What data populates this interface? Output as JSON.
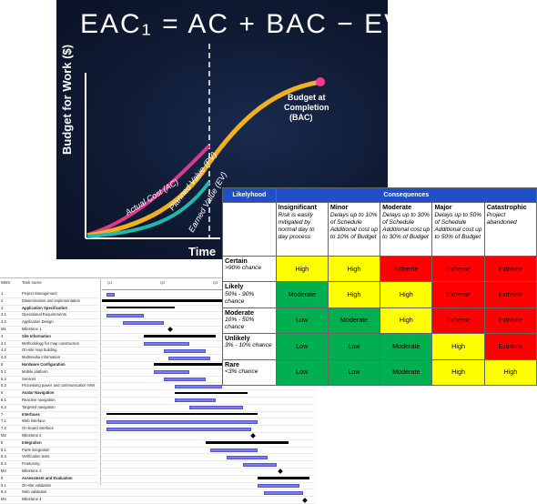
{
  "slide": {
    "equation": "EAC₁ = AC + BAC − EV",
    "y_axis_label": "Budget for Work ($)",
    "x_axis_label": "Time",
    "curves": {
      "ac": "Actual Cost (AC)",
      "pv": "Planned Value (PV)",
      "ev": "Earned Value (EV)"
    },
    "bac_label_line1": "Budget at",
    "bac_label_line2": "Completion",
    "bac_label_line3": "(BAC)",
    "colors": {
      "ac": "#d93a8e",
      "pv": "#f0b020",
      "ev": "#22b8b0",
      "bac_dot": "#ff3a8c"
    }
  },
  "matrix": {
    "likelihood_header": "Likelyhood",
    "consequences_header": "Consequences",
    "columns": [
      {
        "title": "Insignificant",
        "desc": "Risk is easily mitigated by normal day to day process"
      },
      {
        "title": "Minor",
        "desc": "Delays up to 10% of Schedule Additional cost up to 10% of Budget"
      },
      {
        "title": "Moderate",
        "desc": "Delays up to 30% of Schedule Additional cost up to 30% of Budget"
      },
      {
        "title": "Major",
        "desc": "Delays up to 50% of Schedule Additional cost up to 50% of Budget"
      },
      {
        "title": "Catastrophic",
        "desc": "Project abandoned"
      }
    ],
    "rows": [
      {
        "title": "Certain",
        "desc": ">90% chance",
        "values": [
          "High",
          "High",
          "Extreme",
          "Extreme",
          "Extreme"
        ]
      },
      {
        "title": "Likely",
        "desc": "50% - 90% chance",
        "values": [
          "Moderate",
          "High",
          "High",
          "Extreme",
          "Extreme"
        ]
      },
      {
        "title": "Moderate",
        "desc": "10% - 50% chance",
        "values": [
          "Low",
          "Moderate",
          "High",
          "Extreme",
          "Extreme"
        ]
      },
      {
        "title": "Unlikely",
        "desc": "3% - 10% chance",
        "values": [
          "Low",
          "Low",
          "Moderate",
          "High",
          "Extreme"
        ]
      },
      {
        "title": "Rare",
        "desc": "<3% chance",
        "values": [
          "Low",
          "Low",
          "Moderate",
          "High",
          "High"
        ]
      }
    ],
    "colors": {
      "header": "#1f4fc9",
      "High": "#ffff00",
      "Extreme": "#ff0000",
      "Moderate": "#00b050",
      "Low": "#00b050"
    }
  },
  "gantt": {
    "col_id": "WBS",
    "col_name": "Task name",
    "quarters": [
      "Q1",
      "Q2",
      "Q3",
      "Q4"
    ],
    "tasks": [
      {
        "id": "1",
        "name": "Project Management",
        "type": "bar",
        "bold": false,
        "start": 0.02,
        "end": 0.06
      },
      {
        "id": "2",
        "name": "Dissemination and implementation",
        "type": "summary",
        "bold": false,
        "start": 0.0,
        "end": 1.0
      },
      {
        "id": "3",
        "name": "Application Specification",
        "type": "summary",
        "bold": true,
        "start": 0.02,
        "end": 0.35
      },
      {
        "id": "3.1",
        "name": "Operational Requirements",
        "type": "bar",
        "bold": false,
        "start": 0.02,
        "end": 0.2
      },
      {
        "id": "3.2",
        "name": "Application Design",
        "type": "bar",
        "bold": false,
        "start": 0.1,
        "end": 0.3
      },
      {
        "id": "M1",
        "name": "Milestone 1",
        "type": "milestone",
        "bold": false,
        "start": 0.33,
        "end": 0.33
      },
      {
        "id": "4",
        "name": "Site Information",
        "type": "summary",
        "bold": true,
        "start": 0.2,
        "end": 0.55
      },
      {
        "id": "4.1",
        "name": "Methodology for map construction",
        "type": "bar",
        "bold": false,
        "start": 0.2,
        "end": 0.42
      },
      {
        "id": "4.2",
        "name": "On-site map building",
        "type": "bar",
        "bold": false,
        "start": 0.3,
        "end": 0.5
      },
      {
        "id": "4.3",
        "name": "Multimedia information",
        "type": "bar",
        "bold": false,
        "start": 0.32,
        "end": 0.52
      },
      {
        "id": "5",
        "name": "Hardware Configuration",
        "type": "summary",
        "bold": true,
        "start": 0.25,
        "end": 0.6
      },
      {
        "id": "5.1",
        "name": "Mobile platform",
        "type": "bar",
        "bold": false,
        "start": 0.25,
        "end": 0.42
      },
      {
        "id": "5.2",
        "name": "Sensors",
        "type": "bar",
        "bold": false,
        "start": 0.3,
        "end": 0.5
      },
      {
        "id": "5.3",
        "name": "Processing power and communication H/W",
        "type": "bar",
        "bold": false,
        "start": 0.35,
        "end": 0.58
      },
      {
        "id": "6",
        "name": "Avatar Navigation",
        "type": "summary",
        "bold": true,
        "start": 0.35,
        "end": 0.7
      },
      {
        "id": "6.1",
        "name": "Reactive navigation",
        "type": "bar",
        "bold": false,
        "start": 0.35,
        "end": 0.55
      },
      {
        "id": "6.2",
        "name": "Targeted navigation",
        "type": "bar",
        "bold": false,
        "start": 0.42,
        "end": 0.68
      },
      {
        "id": "7",
        "name": "Interfaces",
        "type": "summary",
        "bold": true,
        "start": 0.02,
        "end": 0.75
      },
      {
        "id": "7.1",
        "name": "Web interface",
        "type": "bar",
        "bold": false,
        "start": 0.02,
        "end": 0.75
      },
      {
        "id": "7.2",
        "name": "On-board interface",
        "type": "bar",
        "bold": false,
        "start": 0.02,
        "end": 0.72
      },
      {
        "id": "M2",
        "name": "Milestone 2",
        "type": "milestone",
        "bold": false,
        "start": 0.73,
        "end": 0.73
      },
      {
        "id": "8",
        "name": "Integration",
        "type": "summary",
        "bold": true,
        "start": 0.5,
        "end": 0.9
      },
      {
        "id": "8.1",
        "name": "Parts integration",
        "type": "bar",
        "bold": false,
        "start": 0.52,
        "end": 0.75
      },
      {
        "id": "8.2",
        "name": "Verification tests",
        "type": "bar",
        "bold": false,
        "start": 0.6,
        "end": 0.8
      },
      {
        "id": "8.3",
        "name": "Finetuning",
        "type": "bar",
        "bold": false,
        "start": 0.68,
        "end": 0.84
      },
      {
        "id": "M3",
        "name": "Milestone 3",
        "type": "milestone",
        "bold": false,
        "start": 0.86,
        "end": 0.86
      },
      {
        "id": "9",
        "name": "Assessment and Evaluation",
        "type": "summary",
        "bold": true,
        "start": 0.75,
        "end": 1.0
      },
      {
        "id": "9.1",
        "name": "On-site validation",
        "type": "bar",
        "bold": false,
        "start": 0.75,
        "end": 0.95
      },
      {
        "id": "9.2",
        "name": "Web validation",
        "type": "bar",
        "bold": false,
        "start": 0.78,
        "end": 0.97
      },
      {
        "id": "M4",
        "name": "Milestone 4",
        "type": "milestone",
        "bold": false,
        "start": 0.98,
        "end": 0.98
      }
    ]
  }
}
